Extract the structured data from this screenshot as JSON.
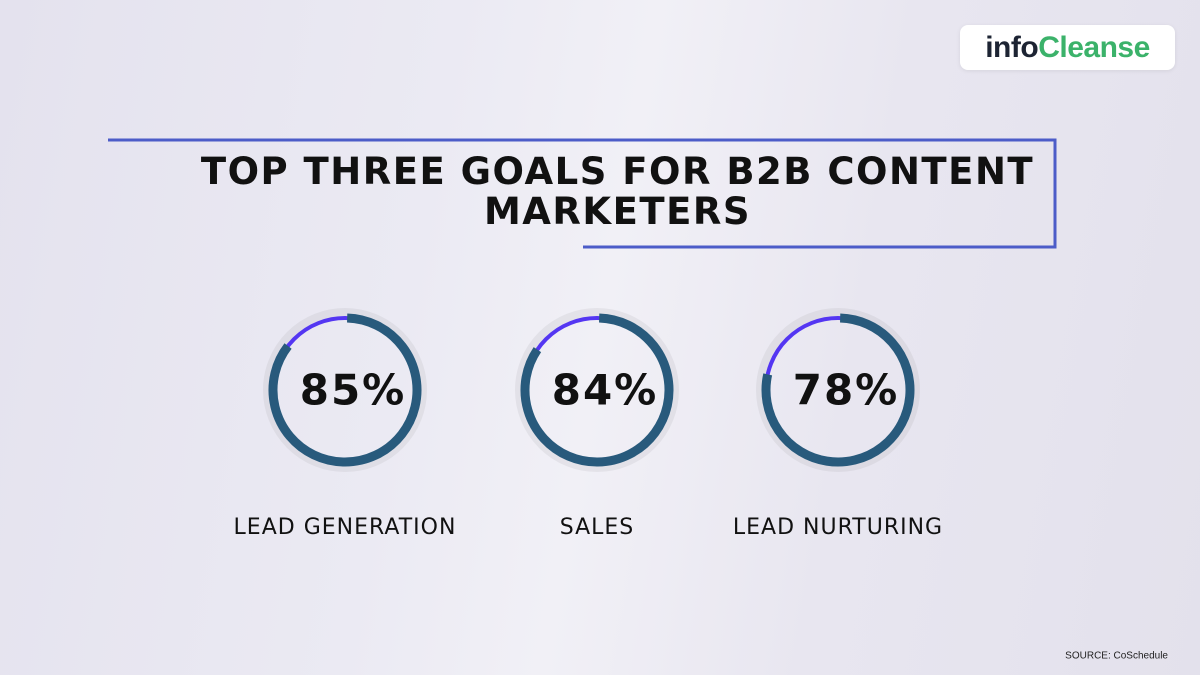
{
  "brand": [
    "info",
    "Cleanse"
  ],
  "chart_data": {
    "type": "gauge",
    "title": "TOP THREE GOALS FOR B2B CONTENT MARKETERS",
    "categories": [
      "LEAD GENERATION",
      "SALES",
      "LEAD NURTURING"
    ],
    "values": [
      85,
      84,
      78
    ],
    "value_labels": [
      "85%",
      "84%",
      "78%"
    ],
    "ylim": [
      0,
      100
    ],
    "color": "#285a7c",
    "track_color": "#5436f2",
    "source": "SOURCE: CoSchedule"
  }
}
